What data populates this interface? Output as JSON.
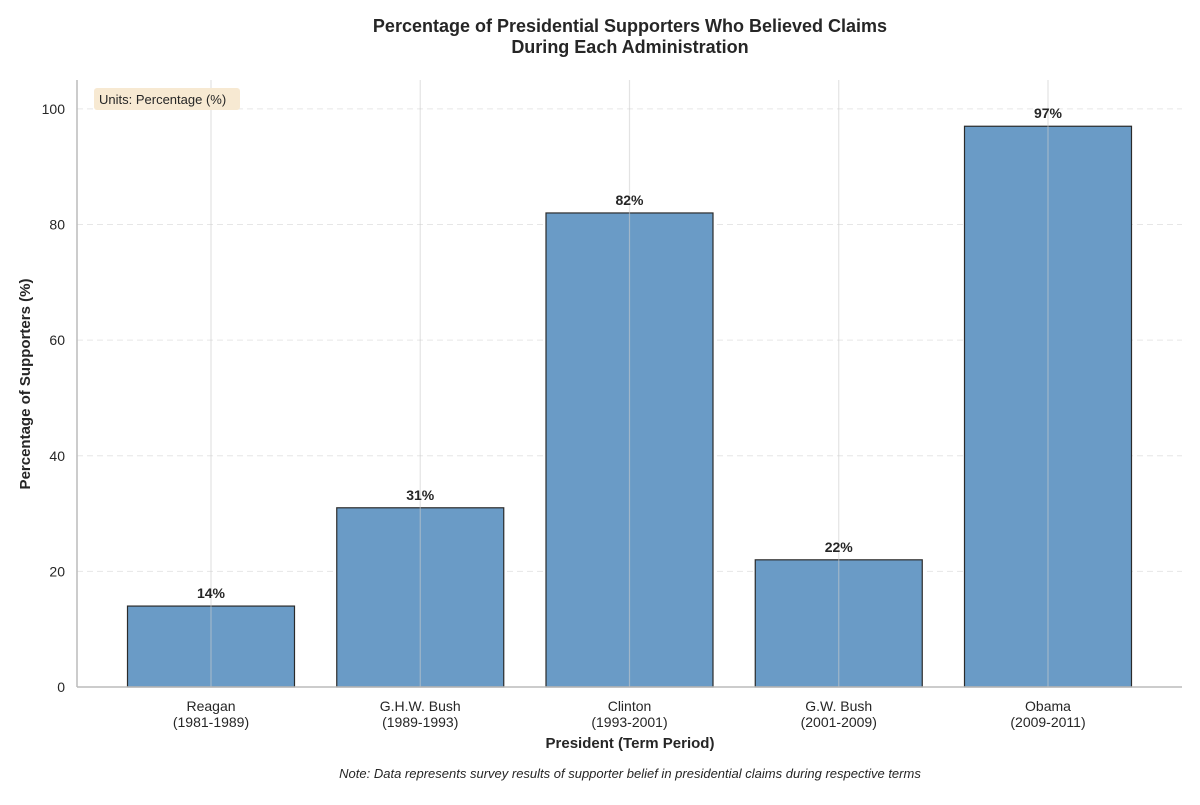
{
  "chart_data": {
    "type": "bar",
    "title": [
      "Percentage of Presidential Supporters Who Believed Claims",
      "During Each Administration"
    ],
    "xlabel": "President (Term Period)",
    "ylabel": "Percentage of Supporters (%)",
    "ylim": [
      0,
      105
    ],
    "yticks": [
      0,
      20,
      40,
      60,
      80,
      100
    ],
    "categories": [
      {
        "name": "Reagan",
        "term": "(1981-1989)"
      },
      {
        "name": "G.H.W. Bush",
        "term": "(1989-1993)"
      },
      {
        "name": "Clinton",
        "term": "(1993-2001)"
      },
      {
        "name": "G.W. Bush",
        "term": "(2001-2009)"
      },
      {
        "name": "Obama",
        "term": "(2009-2011)"
      }
    ],
    "values": [
      14,
      31,
      82,
      22,
      97
    ],
    "data_labels": [
      "14%",
      "31%",
      "82%",
      "22%",
      "97%"
    ],
    "units_annotation": "Units: Percentage (%)",
    "note": "Note: Data represents survey results of supporter belief in presidential claims during respective terms",
    "grid": {
      "x": true,
      "y": true
    },
    "colors": {
      "bar": "#6a9bc6",
      "bar_edge": "#2b2b2b",
      "units_box": "#f7e9d2",
      "grid_x": "#cccccc",
      "grid_y": "#e6e6e6",
      "axis": "#bbbbbb"
    }
  }
}
